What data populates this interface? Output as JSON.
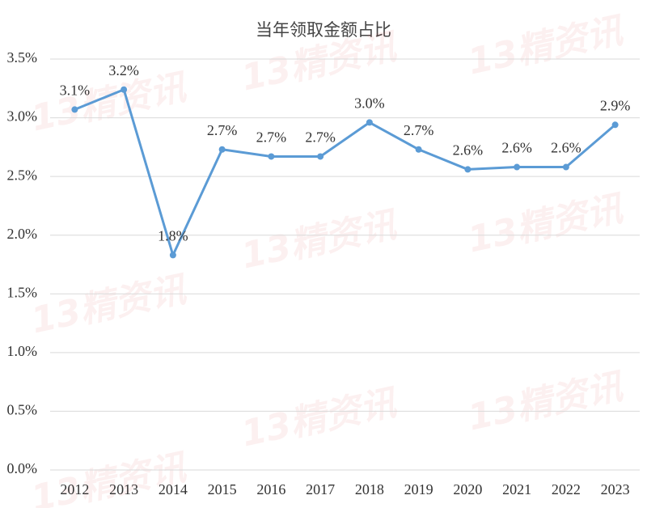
{
  "chart_data": {
    "type": "line",
    "title": "当年领取金额占比",
    "categories": [
      "2012",
      "2013",
      "2014",
      "2015",
      "2016",
      "2017",
      "2018",
      "2019",
      "2020",
      "2021",
      "2022",
      "2023"
    ],
    "series": [
      {
        "color": "#5b9bd5",
        "values": [
          3.07,
          3.24,
          1.83,
          2.73,
          2.67,
          2.67,
          2.96,
          2.73,
          2.56,
          2.58,
          2.58,
          2.94
        ],
        "value_labels": [
          "3.1%",
          "3.2%",
          "1.8%",
          "2.7%",
          "2.7%",
          "2.7%",
          "3.0%",
          "2.7%",
          "2.6%",
          "2.6%",
          "2.6%",
          "2.9%"
        ]
      }
    ],
    "ylim": [
      0,
      3.5
    ],
    "yticks": [
      {
        "value": 0,
        "label": "0.0%"
      },
      {
        "value": 0.5,
        "label": "0.5%"
      },
      {
        "value": 1,
        "label": "1.0%"
      },
      {
        "value": 1.5,
        "label": "1.5%"
      },
      {
        "value": 2,
        "label": "2.0%"
      },
      {
        "value": 2.5,
        "label": "2.5%"
      },
      {
        "value": 3,
        "label": "3.0%"
      },
      {
        "value": 3.5,
        "label": "3.5%"
      }
    ],
    "grid": true,
    "watermark": "13精资讯"
  }
}
